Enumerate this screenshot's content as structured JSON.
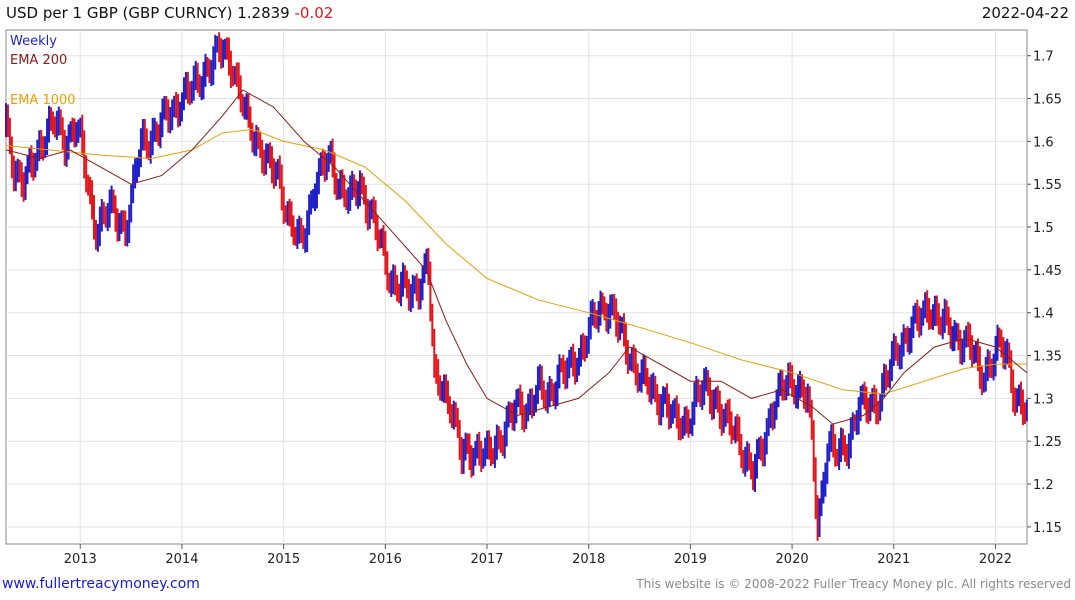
{
  "header": {
    "title": "USD per 1 GBP (GBP CURNCY) 1.2839",
    "change": "-0.02",
    "date": "2022-04-22"
  },
  "footer": {
    "website": "www.fullertreacymoney.com",
    "copyright": "This website is © 2008-2022 Fuller Treacy Money plc. All rights reserved"
  },
  "chart_data": {
    "type": "line",
    "title": "USD per 1 GBP (GBP CURNCY)",
    "frequency": "Weekly",
    "x_range": [
      2012.27,
      2022.31
    ],
    "ylim": [
      1.13,
      1.73
    ],
    "x_ticks": [
      "2013",
      "2014",
      "2015",
      "2016",
      "2017",
      "2018",
      "2019",
      "2020",
      "2021",
      "2022"
    ],
    "y_ticks": [
      "1.15",
      "1.2",
      "1.25",
      "1.3",
      "1.35",
      "1.4",
      "1.45",
      "1.5",
      "1.55",
      "1.6",
      "1.65",
      "1.7"
    ],
    "y_tick_values": [
      1.15,
      1.2,
      1.25,
      1.3,
      1.35,
      1.4,
      1.45,
      1.5,
      1.55,
      1.6,
      1.65,
      1.7
    ],
    "grid": true,
    "legend": [
      "Weekly",
      "EMA 200",
      "EMA 1000"
    ],
    "colors": {
      "up": "#1f1fc8",
      "down": "#e3151b",
      "ema200": "#8b1a1a",
      "ema1000": "#e6a100",
      "grid": "#e2e2e2",
      "axis": "#555555"
    },
    "series": [
      {
        "name": "Weekly",
        "x": [
          2012.27,
          2012.35,
          2012.45,
          2012.55,
          2012.65,
          2012.75,
          2012.85,
          2012.95,
          2013.0,
          2013.1,
          2013.15,
          2013.3,
          2013.45,
          2013.5,
          2013.6,
          2013.75,
          2013.85,
          2014.0,
          2014.1,
          2014.2,
          2014.3,
          2014.4,
          2014.5,
          2014.55,
          2014.65,
          2014.75,
          2014.85,
          2014.95,
          2015.05,
          2015.15,
          2015.2,
          2015.3,
          2015.4,
          2015.45,
          2015.55,
          2015.65,
          2015.75,
          2015.85,
          2015.95,
          2016.05,
          2016.15,
          2016.25,
          2016.35,
          2016.42,
          2016.48,
          2016.55,
          2016.65,
          2016.75,
          2016.8,
          2016.9,
          2017.0,
          2017.1,
          2017.2,
          2017.3,
          2017.4,
          2017.5,
          2017.6,
          2017.7,
          2017.8,
          2017.9,
          2018.0,
          2018.1,
          2018.2,
          2018.25,
          2018.35,
          2018.45,
          2018.55,
          2018.65,
          2018.75,
          2018.85,
          2018.95,
          2019.05,
          2019.15,
          2019.25,
          2019.35,
          2019.45,
          2019.55,
          2019.62,
          2019.7,
          2019.8,
          2019.9,
          2020.0,
          2020.1,
          2020.15,
          2020.2,
          2020.25,
          2020.35,
          2020.45,
          2020.55,
          2020.65,
          2020.75,
          2020.85,
          2020.95,
          2021.05,
          2021.15,
          2021.25,
          2021.35,
          2021.45,
          2021.55,
          2021.65,
          2021.75,
          2021.85,
          2021.95,
          2022.05,
          2022.12,
          2022.2,
          2022.31
        ],
        "values": [
          1.62,
          1.57,
          1.55,
          1.58,
          1.61,
          1.62,
          1.6,
          1.62,
          1.6,
          1.53,
          1.5,
          1.52,
          1.5,
          1.53,
          1.6,
          1.61,
          1.63,
          1.65,
          1.66,
          1.68,
          1.69,
          1.71,
          1.69,
          1.66,
          1.62,
          1.6,
          1.57,
          1.56,
          1.51,
          1.48,
          1.49,
          1.55,
          1.57,
          1.58,
          1.55,
          1.53,
          1.55,
          1.52,
          1.48,
          1.44,
          1.43,
          1.42,
          1.44,
          1.46,
          1.32,
          1.32,
          1.29,
          1.23,
          1.24,
          1.24,
          1.23,
          1.25,
          1.27,
          1.29,
          1.29,
          1.31,
          1.3,
          1.33,
          1.33,
          1.35,
          1.38,
          1.4,
          1.41,
          1.4,
          1.36,
          1.34,
          1.32,
          1.3,
          1.3,
          1.27,
          1.27,
          1.3,
          1.31,
          1.3,
          1.27,
          1.26,
          1.23,
          1.21,
          1.24,
          1.29,
          1.31,
          1.32,
          1.31,
          1.3,
          1.24,
          1.15,
          1.25,
          1.23,
          1.25,
          1.29,
          1.29,
          1.3,
          1.33,
          1.36,
          1.38,
          1.39,
          1.41,
          1.39,
          1.38,
          1.37,
          1.36,
          1.33,
          1.34,
          1.36,
          1.35,
          1.3,
          1.28
        ]
      },
      {
        "name": "EMA 200",
        "x": [
          2012.27,
          2012.6,
          2012.9,
          2013.2,
          2013.5,
          2013.8,
          2014.1,
          2014.4,
          2014.6,
          2014.9,
          2015.2,
          2015.5,
          2015.8,
          2016.1,
          2016.4,
          2016.6,
          2016.8,
          2017.0,
          2017.3,
          2017.6,
          2017.9,
          2018.2,
          2018.4,
          2018.7,
          2019.0,
          2019.3,
          2019.6,
          2019.9,
          2020.2,
          2020.4,
          2020.7,
          2020.9,
          2021.1,
          2021.4,
          2021.7,
          2022.0,
          2022.31
        ],
        "values": [
          1.59,
          1.58,
          1.59,
          1.57,
          1.55,
          1.56,
          1.59,
          1.63,
          1.66,
          1.64,
          1.6,
          1.57,
          1.53,
          1.49,
          1.45,
          1.39,
          1.34,
          1.3,
          1.28,
          1.29,
          1.3,
          1.33,
          1.36,
          1.34,
          1.32,
          1.32,
          1.3,
          1.31,
          1.29,
          1.27,
          1.28,
          1.3,
          1.33,
          1.36,
          1.37,
          1.36,
          1.33
        ]
      },
      {
        "name": "EMA 1000",
        "x": [
          2012.27,
          2012.7,
          2013.2,
          2013.7,
          2014.1,
          2014.4,
          2014.7,
          2015.0,
          2015.4,
          2015.8,
          2016.2,
          2016.6,
          2017.0,
          2017.5,
          2018.0,
          2018.5,
          2019.0,
          2019.5,
          2020.0,
          2020.5,
          2020.9,
          2021.3,
          2021.7,
          2022.0,
          2022.31
        ],
        "values": [
          1.595,
          1.59,
          1.584,
          1.58,
          1.59,
          1.61,
          1.614,
          1.6,
          1.59,
          1.57,
          1.53,
          1.48,
          1.44,
          1.415,
          1.4,
          1.383,
          1.365,
          1.345,
          1.33,
          1.31,
          1.305,
          1.32,
          1.335,
          1.34,
          1.34
        ]
      }
    ]
  }
}
